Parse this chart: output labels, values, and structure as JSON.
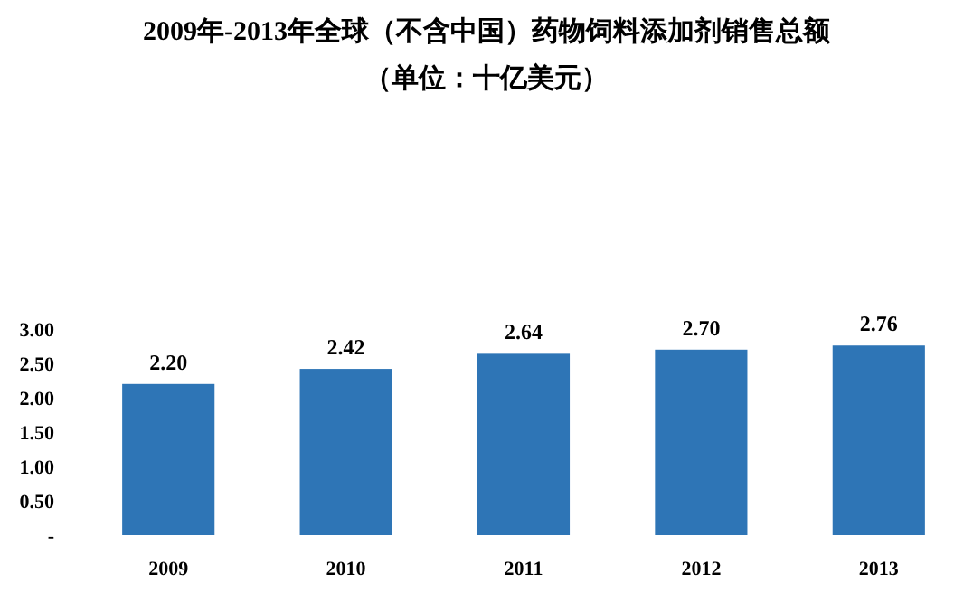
{
  "chart_data": {
    "type": "bar",
    "title": "2009年-2013年全球（不含中国）药物饲料添加剂销售总额",
    "subtitle": "（单位：十亿美元）",
    "categories": [
      "2009",
      "2010",
      "2011",
      "2012",
      "2013"
    ],
    "values": [
      2.2,
      2.42,
      2.64,
      2.7,
      2.76
    ],
    "value_labels": [
      "2.20",
      "2.42",
      "2.64",
      "2.70",
      "2.76"
    ],
    "color": "#2e75b6",
    "ylim": [
      0,
      3
    ],
    "yticks": [
      {
        "value": 0,
        "label": "-"
      },
      {
        "value": 0.5,
        "label": "0.50"
      },
      {
        "value": 1,
        "label": "1.00"
      },
      {
        "value": 1.5,
        "label": "1.50"
      },
      {
        "value": 2,
        "label": "2.00"
      },
      {
        "value": 2.5,
        "label": "2.50"
      },
      {
        "value": 3,
        "label": "3.00"
      }
    ],
    "grid": false
  }
}
